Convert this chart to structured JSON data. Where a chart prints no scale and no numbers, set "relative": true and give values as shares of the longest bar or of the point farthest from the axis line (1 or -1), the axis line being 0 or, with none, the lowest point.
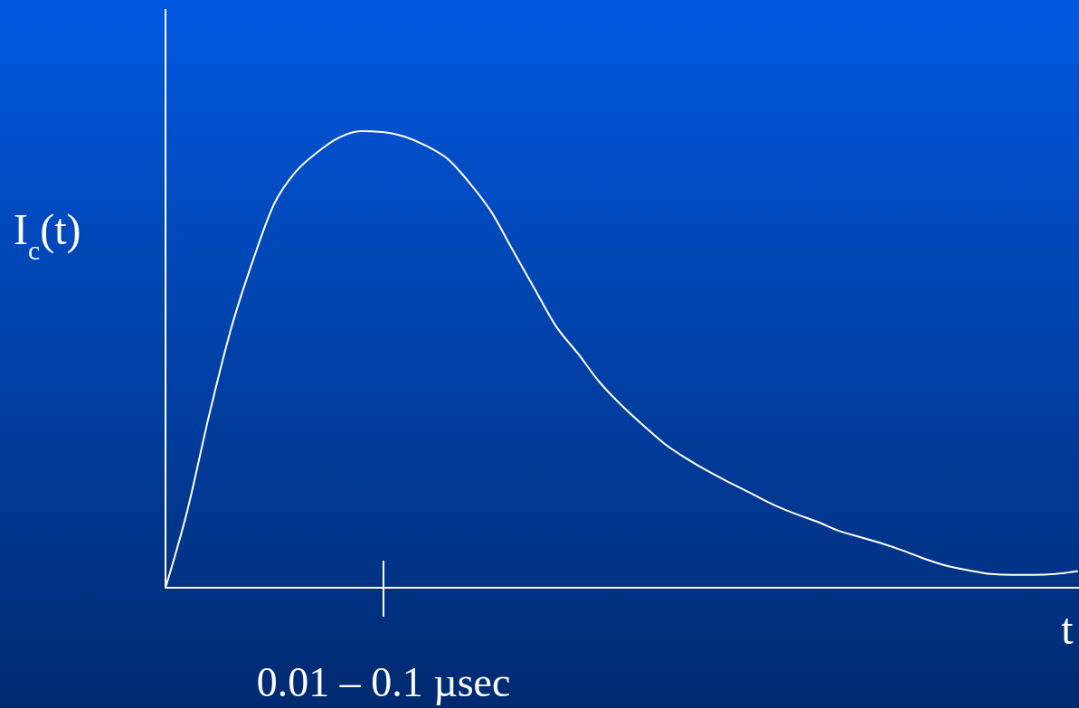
{
  "chart_data": {
    "type": "line",
    "relative": true,
    "xlabel": "t",
    "ylabel": "I$_{c}$(t)",
    "annotations": [
      "0.01 – 0.1 µsec"
    ],
    "categories": [
      null,
      null,
      null,
      null,
      null,
      null,
      null,
      null,
      null,
      null,
      null,
      null,
      null,
      null,
      null,
      null,
      null,
      null,
      null,
      null,
      null,
      null,
      null,
      null,
      null,
      null,
      null,
      null,
      null,
      null,
      null,
      null,
      null,
      null,
      null,
      null,
      null,
      null,
      null,
      null,
      null,
      null,
      null
    ],
    "series": [
      {
        "color": "#ffffff",
        "values": [
          0,
          0.168,
          0.376,
          0.564,
          0.713,
          0.84,
          0.911,
          0.954,
          0.986,
          1,
          0.998,
          0.988,
          0.968,
          0.939,
          0.887,
          0.824,
          0.739,
          0.655,
          0.572,
          0.513,
          0.45,
          0.4,
          0.356,
          0.315,
          0.283,
          0.255,
          0.23,
          0.206,
          0.182,
          0.162,
          0.145,
          0.125,
          0.111,
          0.097,
          0.081,
          0.063,
          0.048,
          0.038,
          0.03,
          0.028,
          0.028,
          0.03,
          0.036
        ]
      }
    ],
    "marker": "none",
    "line_style": "solid"
  }
}
